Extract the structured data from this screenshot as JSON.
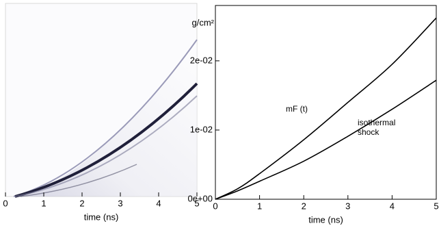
{
  "chart_data": [
    {
      "type": "image",
      "xlabel": "time (ns)",
      "xlim": [
        0,
        5
      ],
      "xticks": [
        0,
        1,
        2,
        3,
        4,
        5
      ]
    },
    {
      "type": "line",
      "ylabel": "g/cm²",
      "xlabel": "time (ns)",
      "x": [
        0,
        0.5,
        1,
        2,
        3,
        4,
        5
      ],
      "series": [
        {
          "color": "#000000",
          "values": [
            0,
            0.0015,
            0.0037,
            0.0086,
            0.014,
            0.0195,
            0.0262
          ]
        },
        {
          "color": "#000000",
          "values": [
            0,
            0.0012,
            0.0026,
            0.0055,
            0.0091,
            0.013,
            0.0172
          ]
        }
      ],
      "annotations": [
        "mF (t)",
        "isothermal",
        "shock"
      ],
      "xlim": [
        0,
        5
      ],
      "xticks": [
        0,
        1,
        2,
        3,
        4,
        5
      ],
      "ylim": [
        0,
        0.028
      ],
      "yticks": [
        {
          "value": 0,
          "label": "0e+00"
        },
        {
          "value": 0.01,
          "label": "1e-02"
        },
        {
          "value": 0.02,
          "label": "2e-02"
        }
      ]
    }
  ]
}
